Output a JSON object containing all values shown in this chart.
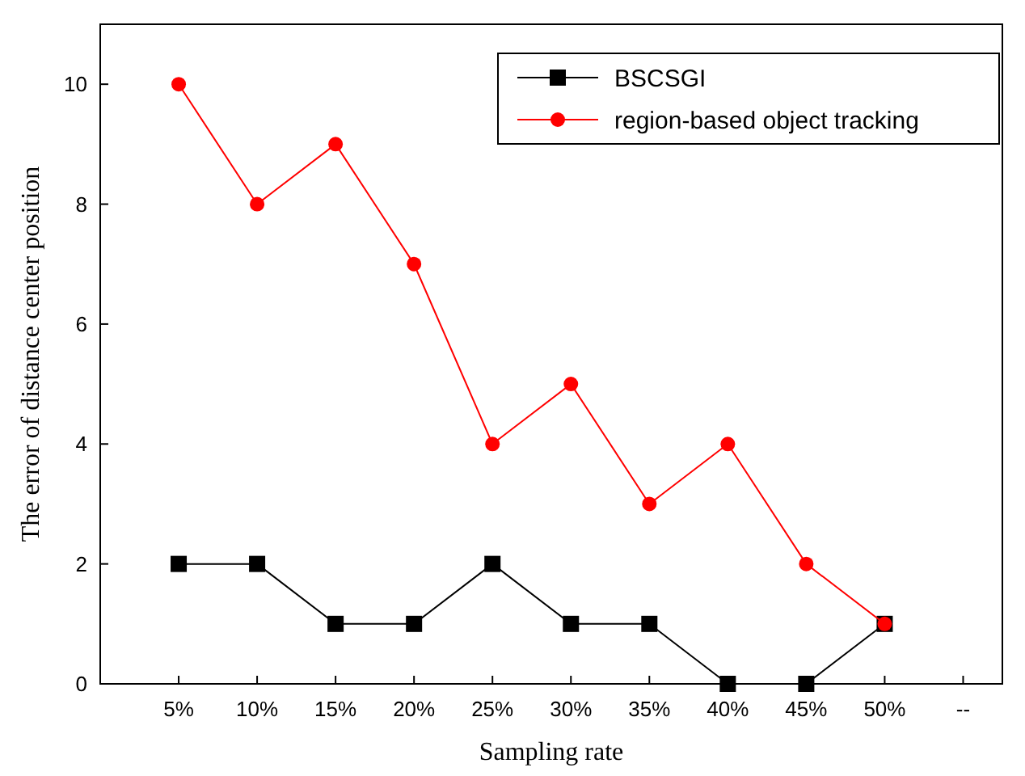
{
  "chart_data": {
    "type": "line",
    "xlabel": "Sampling rate",
    "ylabel": "The error of distance center position",
    "categories": [
      null,
      "5%",
      "10%",
      "15%",
      "20%",
      "25%",
      "30%",
      "35%",
      "40%",
      "45%",
      "50%",
      "--"
    ],
    "series": [
      {
        "name": "BSCSGI",
        "color": "#000000",
        "marker": "square",
        "values": [
          null,
          2,
          2,
          1,
          1,
          2,
          1,
          1,
          0,
          0,
          1,
          null
        ]
      },
      {
        "name": "region-based object tracking",
        "color": "#ff0000",
        "marker": "circle",
        "values": [
          null,
          10,
          8,
          9,
          7,
          4,
          5,
          3,
          4,
          2,
          1,
          null
        ]
      }
    ],
    "ylim": [
      0,
      11
    ],
    "yticks": [
      0,
      2,
      4,
      6,
      8,
      10
    ],
    "grid": false,
    "legend": "top right",
    "line_style": "solid"
  }
}
